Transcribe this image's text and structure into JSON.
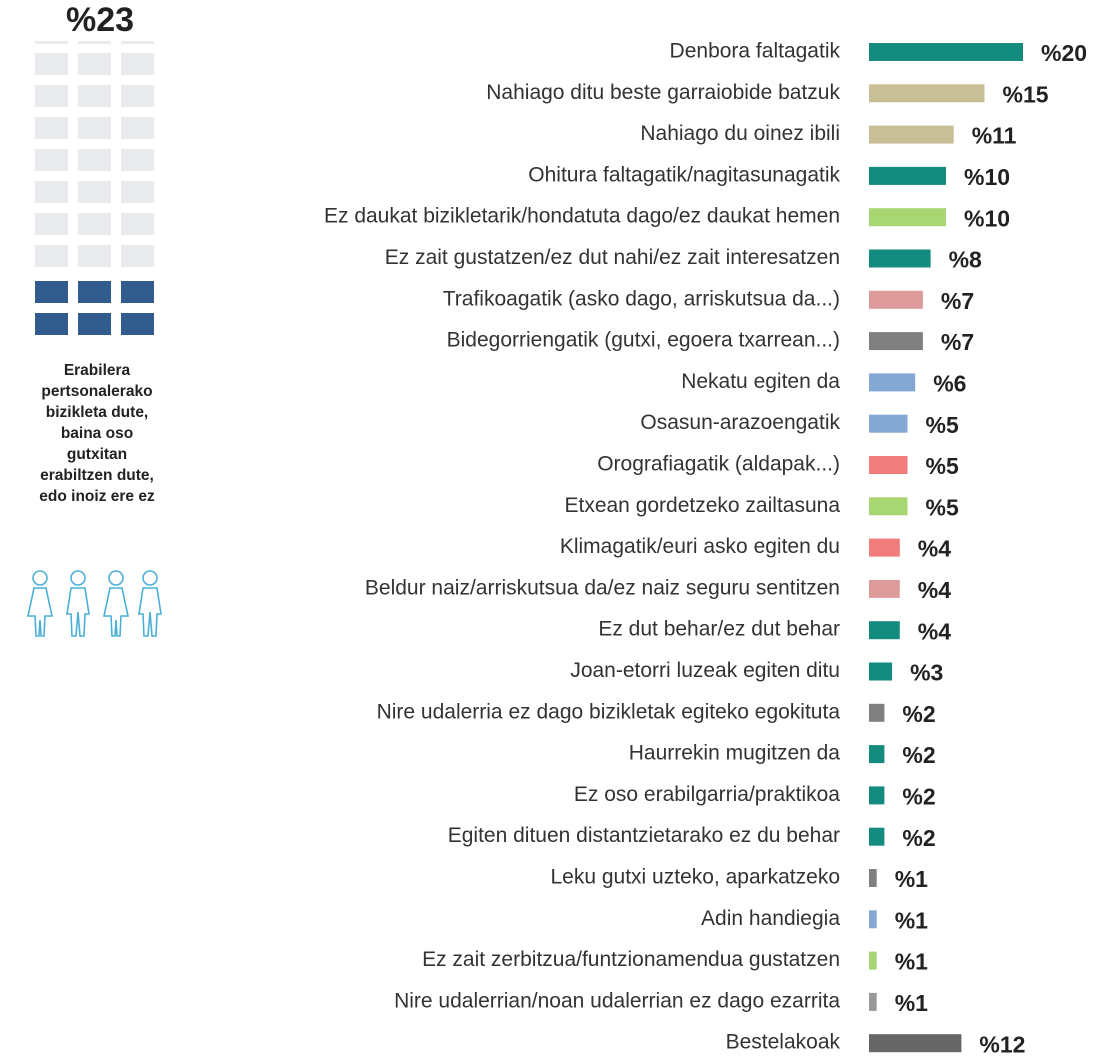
{
  "side_panel": {
    "headline": "%23",
    "text_lines": [
      "Erabilera",
      "pertsonalerako",
      "bizikleta dute,",
      "baina oso",
      "gutxitan",
      "erabiltzen dute,",
      "edo inoiz ere ez"
    ]
  },
  "chart_data": {
    "type": "bar",
    "orientation": "horizontal",
    "categories": [
      "Denbora faltagatik",
      "Nahiago ditu beste garraiobide batzuk",
      "Nahiago du oinez ibili",
      "Ohitura faltagatik/nagitasunagatik",
      "Ez daukat bizikletarik/hondatuta dago/ez daukat hemen",
      "Ez zait gustatzen/ez dut nahi/ez zait interesatzen",
      "Trafikoagatik (asko dago, arriskutsua da...)",
      "Bidegorriengatik (gutxi, egoera txarrean...)",
      "Nekatu egiten da",
      "Osasun-arazoengatik",
      "Orografiagatik (aldapak...)",
      "Etxean gordetzeko zailtasuna",
      "Klimagatik/euri asko egiten du",
      "Beldur naiz/arriskutsua da/ez naiz seguru sentitzen",
      "Ez dut behar/ez dut behar",
      "Joan-etorri luzeak egiten ditu",
      "Nire udalerria ez dago bizikletak egiteko egokituta",
      "Haurrekin mugitzen da",
      "Ez oso erabilgarria/praktikoa",
      "Egiten dituen distantzietarako ez du behar",
      "Leku gutxi uzteko, aparkatzeko",
      "Adin handiegia",
      "Ez zait zerbitzua/funtzionamendua gustatzen",
      "Nire udalerrian/noan udalerrian ez dago ezarrita",
      "Bestelakoak"
    ],
    "values": [
      20,
      15,
      11,
      10,
      10,
      8,
      7,
      7,
      6,
      5,
      5,
      5,
      4,
      4,
      4,
      3,
      2,
      2,
      2,
      2,
      1,
      1,
      1,
      1,
      12
    ],
    "value_labels": [
      "%20",
      "%15",
      "%11",
      "%10",
      "%10",
      "%8",
      "%7",
      "%7",
      "%6",
      "%5",
      "%5",
      "%5",
      "%4",
      "%4",
      "%4",
      "%3",
      "%2",
      "%2",
      "%2",
      "%2",
      "%1",
      "%1",
      "%1",
      "%1",
      "%12"
    ],
    "colors": [
      "#138b7e",
      "#c8bf96",
      "#c8bf96",
      "#138b7e",
      "#a8d672",
      "#138b7e",
      "#dc9a9a",
      "#808080",
      "#84a7d3",
      "#84a7d3",
      "#f07c7c",
      "#a8d672",
      "#f07c7c",
      "#dc9a9a",
      "#138b7e",
      "#138b7e",
      "#808080",
      "#138b7e",
      "#138b7e",
      "#138b7e",
      "#808080",
      "#84a7d3",
      "#a8d672",
      "#999999",
      "#666666"
    ]
  }
}
